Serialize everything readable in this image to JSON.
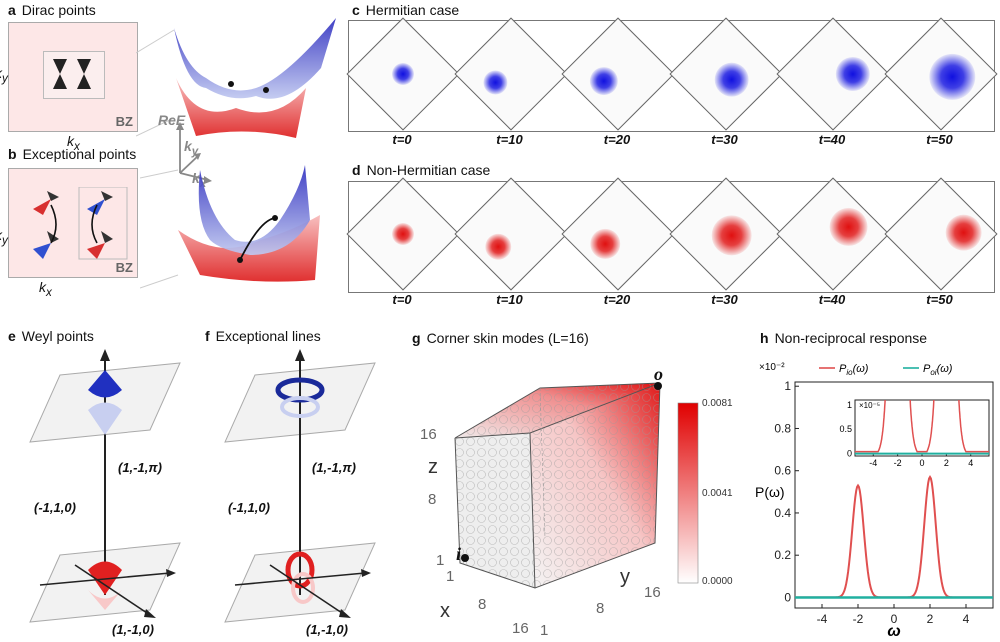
{
  "panels": {
    "a": {
      "letter": "a",
      "title": "Dirac points",
      "ky": "k",
      "ky_sub": "y",
      "kx": "k",
      "kx_sub": "x",
      "bz": "BZ"
    },
    "b": {
      "letter": "b",
      "title": "Exceptional points",
      "ky": "k",
      "ky_sub": "y",
      "kx": "k",
      "kx_sub": "x",
      "bz": "BZ"
    },
    "axes3d": {
      "rez": "ReE",
      "ky": "k",
      "ky_sub": "y",
      "kx": "k",
      "kx_sub": "x"
    },
    "c": {
      "letter": "c",
      "title": "Hermitian case",
      "color": "#1010e0",
      "times": [
        "t=0",
        "t=10",
        "t=20",
        "t=30",
        "t=40",
        "t=50"
      ]
    },
    "d": {
      "letter": "d",
      "title": "Non-Hermitian case",
      "color": "#e01010",
      "times": [
        "t=0",
        "t=10",
        "t=20",
        "t=30",
        "t=40",
        "t=50"
      ]
    },
    "e": {
      "letter": "e",
      "title": "Weyl points",
      "top_coord": "(1,-1,π)",
      "mid_coord": "(-1,1,0)",
      "bot_coord": "(1,-1,0)"
    },
    "f": {
      "letter": "f",
      "title": "Exceptional lines",
      "top_coord": "(1,-1,π)",
      "mid_coord": "(-1,1,0)",
      "bot_coord": "(1,-1,0)"
    },
    "g": {
      "letter": "g",
      "title": "Corner skin modes (L=16)",
      "z_label": "z",
      "x_label": "x",
      "y_label": "y",
      "z_ticks": [
        "16",
        "8",
        "1"
      ],
      "x_ticks": [
        "1",
        "8",
        "16"
      ],
      "y_ticks": [
        "1",
        "8",
        "16"
      ],
      "point_i": "i",
      "point_o": "o",
      "colorbar": [
        "0.0081",
        "0.0041",
        "0.0000"
      ]
    },
    "h": {
      "letter": "h",
      "title": "Non-reciprocal response"
    }
  },
  "chart_data": {
    "type": "line",
    "title": "Non-reciprocal response",
    "xlabel": "ω",
    "ylabel": "P(ω)",
    "y_multiplier": "×10⁻²",
    "xlim": [
      -5.5,
      5.5
    ],
    "ylim": [
      -0.05,
      1.02
    ],
    "x_ticks": [
      "-4",
      "-2",
      "0",
      "2",
      "4"
    ],
    "y_ticks": [
      "0",
      "0.2",
      "0.4",
      "0.6",
      "0.8",
      "1"
    ],
    "legend": [
      {
        "name": "P_io(ω)",
        "main": "P",
        "sub": "io",
        "arg": "(ω)",
        "color": "#e05050"
      },
      {
        "name": "P_oi(ω)",
        "main": "P",
        "sub": "oi",
        "arg": "(ω)",
        "color": "#20b0a0"
      }
    ],
    "series": [
      {
        "name": "P_io(ω)",
        "color": "#e05050",
        "peaks": [
          {
            "center": -2.0,
            "height": 0.53,
            "width": 0.32
          },
          {
            "center": 2.0,
            "height": 0.57,
            "width": 0.32
          }
        ]
      },
      {
        "name": "P_oi(ω)",
        "color": "#20b0a0",
        "constant": 0.0
      }
    ],
    "inset": {
      "multiplier": "×10⁻⁵",
      "xlim": [
        -5.5,
        5.5
      ],
      "ylim": [
        -0.05,
        1.1
      ],
      "x_ticks": [
        "-4",
        "-2",
        "0",
        "2",
        "4"
      ],
      "y_ticks": [
        "0",
        "0.5",
        "1"
      ]
    }
  }
}
